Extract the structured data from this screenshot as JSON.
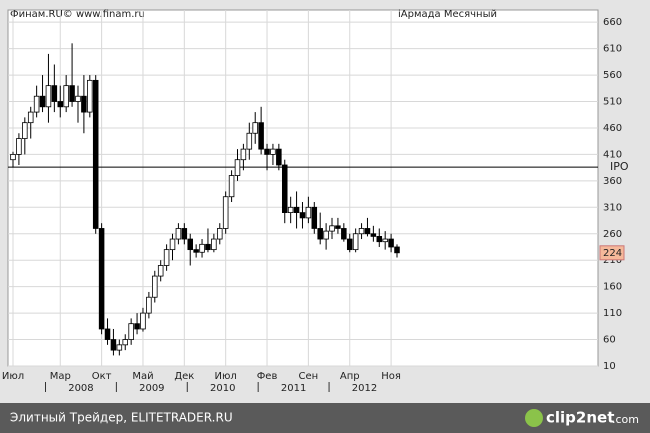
{
  "chart_data": {
    "type": "candlestick",
    "source": "Финам.RU©  www.finam.ru",
    "title": "iАрмада Месячный",
    "categories": [
      "Июл",
      null,
      null,
      null,
      null,
      null,
      null,
      null,
      "Мар",
      null,
      null,
      null,
      null,
      null,
      null,
      "Окт",
      null,
      null,
      null,
      null,
      null,
      null,
      "Май",
      null,
      null,
      null,
      null,
      null,
      null,
      "Дек",
      null,
      null,
      null,
      null,
      null,
      null,
      "Июл",
      null,
      null,
      null,
      null,
      null,
      null,
      "Фев",
      null,
      null,
      null,
      null,
      null,
      null,
      "Сен",
      null,
      null,
      null,
      null,
      null,
      null,
      "Апр",
      null,
      null,
      null,
      null,
      null,
      null,
      "Ноя",
      null
    ],
    "years": [
      "2008",
      "2009",
      "2010",
      "2011",
      "2012"
    ],
    "open": [
      400,
      410,
      440,
      470,
      490,
      520,
      500,
      540,
      510,
      500,
      540,
      510,
      520,
      490,
      550,
      270,
      80,
      60,
      40,
      50,
      60,
      90,
      80,
      110,
      140,
      180,
      200,
      230,
      250,
      270,
      250,
      230,
      225,
      240,
      230,
      250,
      270,
      330,
      370,
      400,
      420,
      450,
      470,
      420,
      410,
      420,
      390,
      300,
      310,
      300,
      290,
      310,
      270,
      250,
      265,
      275,
      270,
      250,
      230,
      260,
      270,
      260,
      255,
      245,
      250,
      235
    ],
    "high": [
      415,
      450,
      480,
      500,
      540,
      560,
      600,
      580,
      540,
      560,
      620,
      540,
      560,
      560,
      560,
      280,
      100,
      80,
      60,
      70,
      100,
      110,
      120,
      150,
      190,
      210,
      240,
      260,
      280,
      280,
      260,
      240,
      250,
      270,
      260,
      280,
      340,
      380,
      420,
      430,
      470,
      490,
      500,
      430,
      430,
      430,
      400,
      330,
      340,
      320,
      330,
      320,
      300,
      280,
      290,
      290,
      280,
      260,
      270,
      280,
      290,
      275,
      270,
      265,
      260,
      240
    ],
    "low": [
      385,
      390,
      410,
      440,
      480,
      490,
      470,
      490,
      480,
      490,
      500,
      470,
      450,
      480,
      260,
      70,
      50,
      30,
      30,
      40,
      50,
      70,
      75,
      100,
      130,
      170,
      190,
      210,
      240,
      240,
      200,
      215,
      215,
      225,
      225,
      240,
      260,
      320,
      360,
      380,
      400,
      430,
      410,
      380,
      390,
      380,
      280,
      280,
      270,
      270,
      280,
      260,
      240,
      230,
      250,
      260,
      245,
      225,
      225,
      250,
      255,
      245,
      235,
      230,
      225,
      215
    ],
    "close": [
      410,
      440,
      470,
      490,
      520,
      500,
      540,
      510,
      500,
      540,
      510,
      520,
      490,
      550,
      270,
      80,
      60,
      40,
      50,
      60,
      90,
      80,
      110,
      140,
      180,
      200,
      230,
      250,
      270,
      250,
      230,
      225,
      240,
      230,
      250,
      270,
      330,
      370,
      400,
      420,
      450,
      470,
      420,
      410,
      420,
      390,
      300,
      310,
      300,
      290,
      310,
      270,
      250,
      265,
      275,
      270,
      250,
      230,
      260,
      270,
      260,
      255,
      245,
      250,
      235,
      224
    ],
    "ylim": [
      10,
      683
    ],
    "yticks": [
      10,
      60,
      110,
      160,
      210,
      260,
      310,
      360,
      410,
      460,
      510,
      560,
      610,
      660
    ],
    "grid": true,
    "up_color": "#ffffff",
    "down_color": "#000000",
    "reference_line": {
      "label": "IPO",
      "value": 386
    }
  },
  "footer": {
    "text": "Элитный Трейдер, ELITETRADER.RU",
    "logo_name": "clip2net",
    "logo_suffix": ".com"
  }
}
